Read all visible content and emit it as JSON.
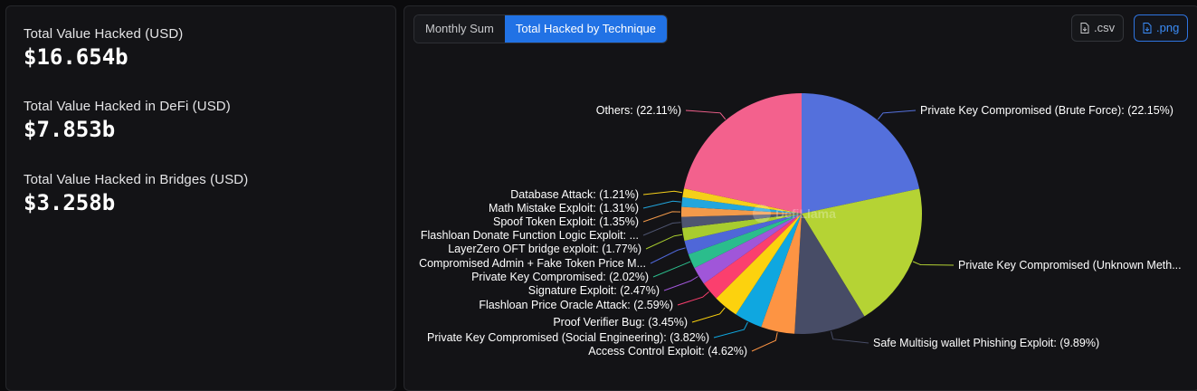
{
  "stats": [
    {
      "label": "Total Value Hacked (USD)",
      "value": "$16.654b"
    },
    {
      "label": "Total Value Hacked in DeFi (USD)",
      "value": "$7.853b"
    },
    {
      "label": "Total Value Hacked in Bridges (USD)",
      "value": "$3.258b"
    }
  ],
  "tabs": [
    {
      "label": "Monthly Sum",
      "active": false
    },
    {
      "label": "Total Hacked by Technique",
      "active": true
    }
  ],
  "downloads": {
    "csv_label": ".csv",
    "png_label": ".png"
  },
  "watermark": "DefiLlama",
  "chart_data": {
    "type": "pie",
    "start": "12 o'clock",
    "direction": "clockwise",
    "slices": [
      {
        "label": "Private Key Compromised (Brute Force): (22.15%)",
        "value": 22.15,
        "color": "#5470dc"
      },
      {
        "label": "Private Key Compromised (Unknown Meth...",
        "value": 20.0,
        "color": "#b5d334"
      },
      {
        "label": "Safe Multisig wallet Phishing Exploit: (9.89%)",
        "value": 9.89,
        "color": "#474c66"
      },
      {
        "label": "Access Control Exploit: (4.62%)",
        "value": 4.62,
        "color": "#fd9443"
      },
      {
        "label": "Private Key Compromised (Social Engineering): (3.82%)",
        "value": 3.82,
        "color": "#0fa7e0"
      },
      {
        "label": "Proof Verifier Bug: (3.45%)",
        "value": 3.45,
        "color": "#fcd20e"
      },
      {
        "label": "Flashloan Price Oracle Attack: (2.59%)",
        "value": 2.59,
        "color": "#fb3f6e"
      },
      {
        "label": "Signature Exploit: (2.47%)",
        "value": 2.47,
        "color": "#a056d9"
      },
      {
        "label": "Private Key Compromised: (2.02%)",
        "value": 2.02,
        "color": "#2bbd8c"
      },
      {
        "label": "Compromised Admin + Fake Token Price M...",
        "value": 1.9,
        "color": "#4f67d8"
      },
      {
        "label": "LayerZero OFT bridge exploit: (1.77%)",
        "value": 1.77,
        "color": "#a8cc2e"
      },
      {
        "label": "Flashloan Donate Function Logic Exploit: ...",
        "value": 1.5,
        "color": "#4e5570"
      },
      {
        "label": "Spoof Token Exploit: (1.35%)",
        "value": 1.35,
        "color": "#f39a4a"
      },
      {
        "label": "Math Mistake Exploit: (1.31%)",
        "value": 1.31,
        "color": "#22a6dd"
      },
      {
        "label": "Database Attack: (1.21%)",
        "value": 1.21,
        "color": "#f5cf1a"
      },
      {
        "label": "Others: (22.11%)",
        "value": 22.11,
        "color": "#f3618d"
      }
    ]
  }
}
